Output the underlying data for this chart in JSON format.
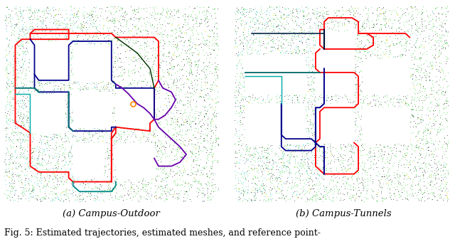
{
  "fig_width": 6.4,
  "fig_height": 3.43,
  "dpi": 100,
  "background_color": "#ffffff",
  "caption_a": "(a) Campus-Outdoor",
  "caption_b": "(b) Campus-Tunnels",
  "footer_text": "Fig. 5: Estimated trajectories, estimated meshes, and reference point-",
  "caption_fontsize": 9.5,
  "footer_fontsize": 9.0,
  "seed_a": 42,
  "seed_b": 77,
  "n_pts": 3000,
  "trajectory_lw": 1.3
}
